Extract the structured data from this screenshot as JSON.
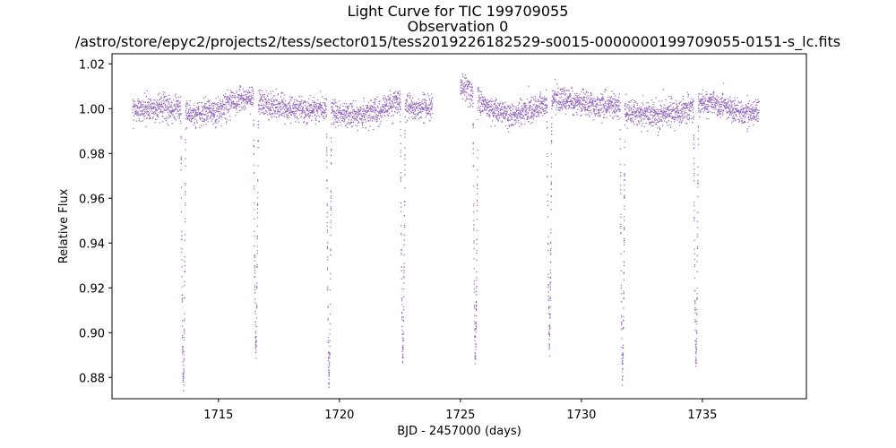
{
  "chart_data": {
    "type": "scatter",
    "title_lines": [
      "Light Curve for TIC 199709055",
      "Observation 0",
      "/astro/store/epyc2/projects2/tess/sector015/tess2019226182529-s0015-0000000199709055-0151-s_lc.fits"
    ],
    "xlabel": "BJD - 2457000 (days)",
    "ylabel": "Relative Flux",
    "xlim": [
      1710.6,
      1739.3
    ],
    "ylim": [
      0.8705,
      1.0245
    ],
    "xticks": [
      1715,
      1720,
      1725,
      1730,
      1735
    ],
    "xtick_labels": [
      "1715",
      "1720",
      "1725",
      "1730",
      "1735"
    ],
    "yticks": [
      0.88,
      0.9,
      0.92,
      0.94,
      0.96,
      0.98,
      1.0,
      1.02
    ],
    "ytick_labels": [
      "0.88",
      "0.90",
      "0.92",
      "0.94",
      "0.96",
      "0.98",
      "1.00",
      "1.02"
    ],
    "grid": false,
    "marker_color": "#9467bd",
    "observation_segments": [
      {
        "x_start": 1711.45,
        "x_end": 1723.85
      },
      {
        "x_start": 1725.0,
        "x_end": 1737.35
      }
    ],
    "baseline_trend": {
      "x": [
        1711.45,
        1712.5,
        1713.3,
        1713.8,
        1714.8,
        1715.6,
        1716.3,
        1716.6,
        1717.5,
        1718.5,
        1719.4,
        1719.7,
        1720.5,
        1721.5,
        1722.5,
        1722.7,
        1723.85,
        1725.0,
        1725.5,
        1726.2,
        1727.0,
        1727.8,
        1728.6,
        1728.8,
        1729.8,
        1730.8,
        1731.7,
        1731.9,
        1733.0,
        1734.0,
        1734.7,
        1734.9,
        1735.8,
        1736.6,
        1737.35
      ],
      "y": [
        0.9995,
        1.0,
        1.0005,
        0.9975,
        0.9985,
        1.003,
        1.0045,
        1.003,
        1.0005,
        0.9995,
        1.0,
        0.9985,
        0.997,
        0.9985,
        1.0035,
        1.001,
        1.0,
        1.01,
        1.0075,
        0.9995,
        0.997,
        0.999,
        1.002,
        1.0045,
        1.003,
        1.0015,
        1.0015,
        0.9985,
        0.997,
        0.9985,
        1.0015,
        1.0025,
        1.0015,
        0.998,
        0.9985
      ]
    },
    "scatter_sigma": 0.0028,
    "eclipses": [
      {
        "center": 1713.55,
        "depth": 0.878
      },
      {
        "center": 1716.55,
        "depth": 0.89
      },
      {
        "center": 1719.57,
        "depth": 0.878
      },
      {
        "center": 1722.62,
        "depth": 0.887
      },
      {
        "center": 1725.62,
        "depth": 0.882
      },
      {
        "center": 1728.68,
        "depth": 0.892
      },
      {
        "center": 1731.7,
        "depth": 0.878
      },
      {
        "center": 1734.74,
        "depth": 0.885
      }
    ],
    "eclipse_half_width_days": 0.1
  }
}
